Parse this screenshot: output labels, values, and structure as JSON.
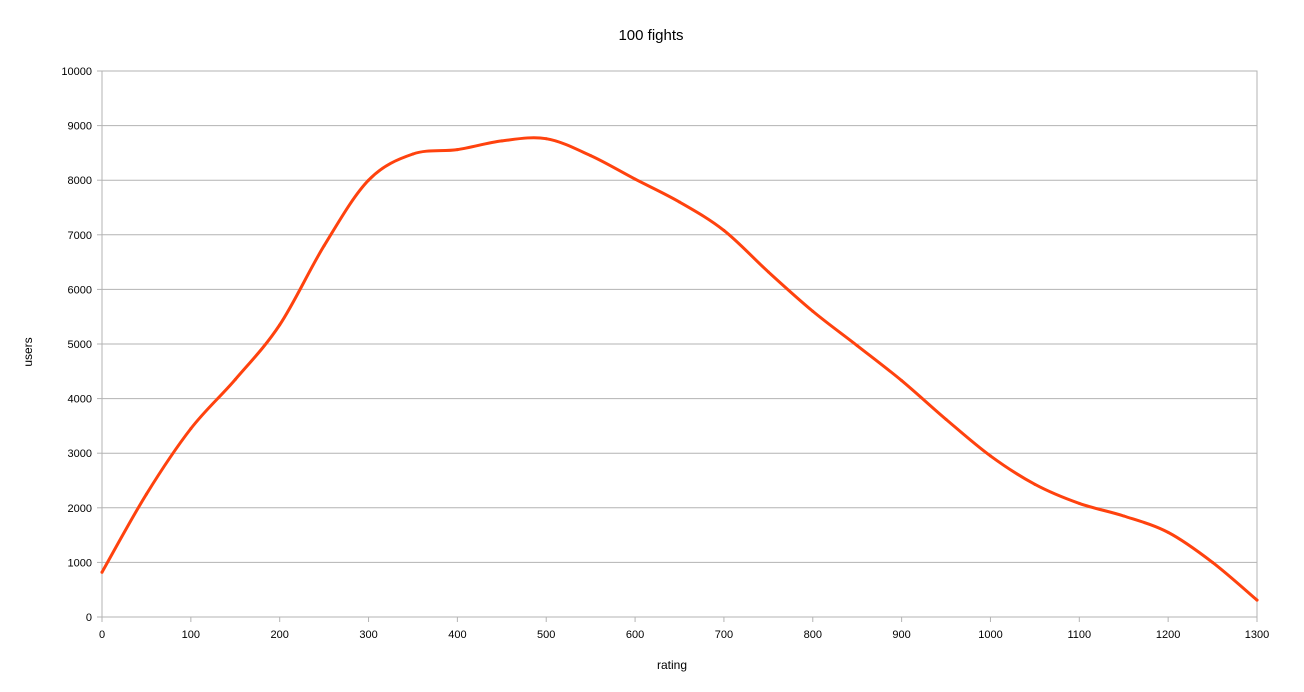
{
  "chart_data": {
    "type": "line",
    "title": "100 fights",
    "xlabel": "rating",
    "ylabel": "users",
    "xlim": [
      0,
      1300
    ],
    "ylim": [
      0,
      10000
    ],
    "xticks": [
      "0",
      "100",
      "200",
      "300",
      "400",
      "500",
      "600",
      "700",
      "800",
      "900",
      "1000",
      "1100",
      "1200",
      "1300"
    ],
    "yticks": [
      "0",
      "1000",
      "2000",
      "3000",
      "4000",
      "5000",
      "6000",
      "7000",
      "8000",
      "9000",
      "10000"
    ],
    "grid": "horizontal",
    "legend": "none",
    "series": [
      {
        "color": "#ff420e",
        "x": [
          0,
          50,
          100,
          150,
          200,
          250,
          300,
          350,
          400,
          450,
          500,
          550,
          600,
          650,
          700,
          750,
          800,
          850,
          900,
          950,
          1000,
          1050,
          1100,
          1150,
          1200,
          1250,
          1300
        ],
        "y": [
          820,
          2250,
          3450,
          4350,
          5350,
          6800,
          8000,
          8480,
          8560,
          8720,
          8760,
          8450,
          8020,
          7600,
          7080,
          6320,
          5600,
          4970,
          4330,
          3620,
          2950,
          2430,
          2080,
          1850,
          1550,
          1000,
          310
        ]
      }
    ]
  }
}
